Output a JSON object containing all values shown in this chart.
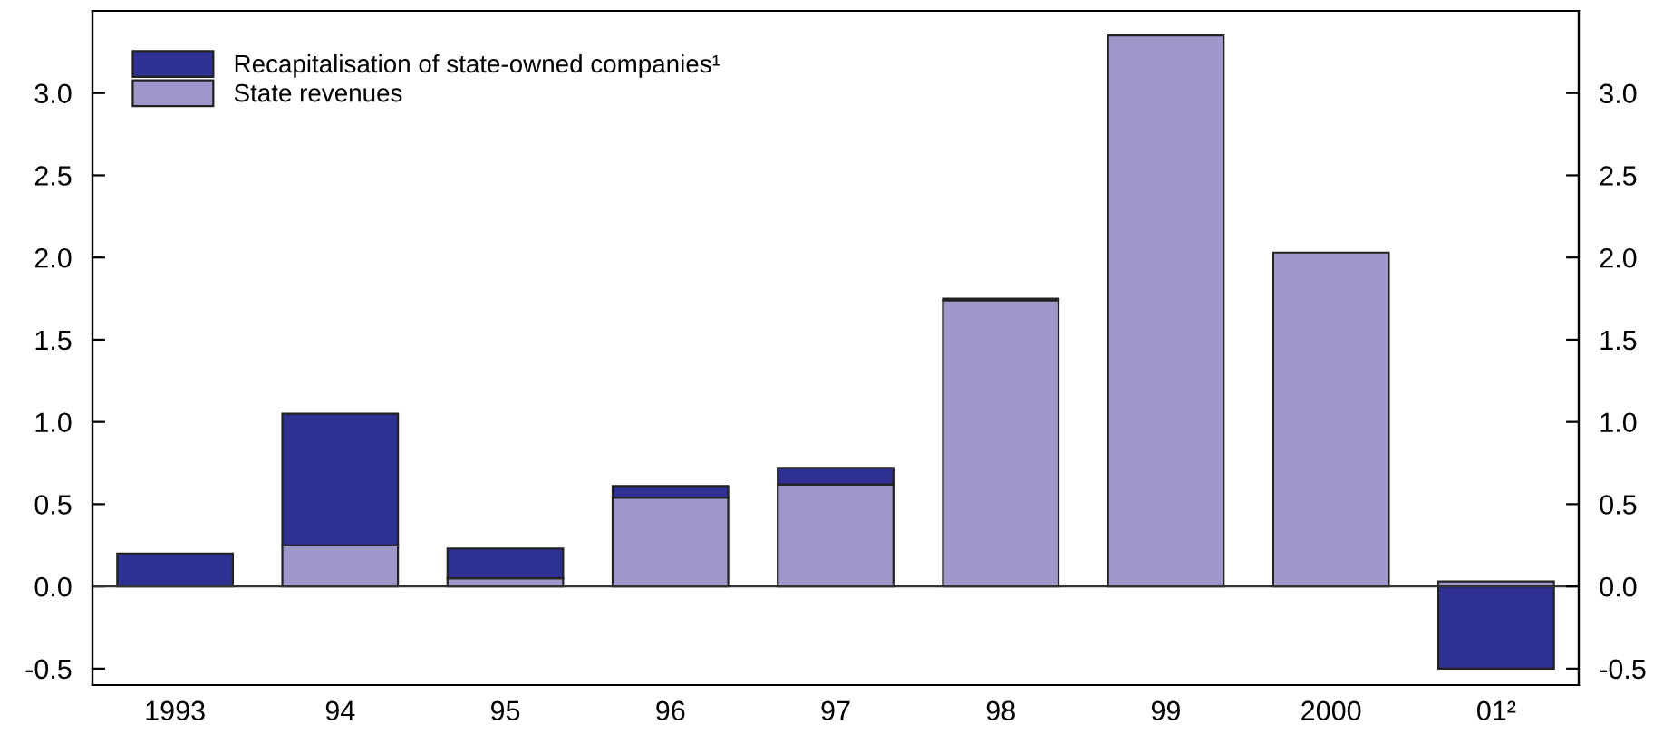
{
  "chart_data": {
    "type": "bar",
    "stacked": true,
    "categories": [
      "1993",
      "94",
      "95",
      "96",
      "97",
      "98",
      "99",
      "2000",
      "01²"
    ],
    "series": [
      {
        "name": "State revenues",
        "color": "#9e97c9",
        "values": [
          0,
          0.25,
          0.05,
          0.54,
          0.62,
          1.74,
          3.35,
          2.03,
          0.03
        ]
      },
      {
        "name": "Recapitalisation of state-owned companies¹",
        "color": "#2e3192",
        "values": [
          0.2,
          0.8,
          0.18,
          0.07,
          0.1,
          0.01,
          0,
          0,
          -0.5
        ]
      }
    ],
    "ylim": [
      -0.6,
      3.5
    ],
    "yticks": [
      {
        "value": -0.5,
        "label": "-0.5"
      },
      {
        "value": 0,
        "label": "0.0"
      },
      {
        "value": 0.5,
        "label": "0.5"
      },
      {
        "value": 1,
        "label": "1.0"
      },
      {
        "value": 1.5,
        "label": "1.5"
      },
      {
        "value": 2,
        "label": "2.0"
      },
      {
        "value": 2.5,
        "label": "2.5"
      },
      {
        "value": 3,
        "label": "3.0"
      }
    ],
    "y2lim": [
      -0.6,
      3.5
    ],
    "y2ticks": [
      {
        "value": -0.5,
        "label": "-0.5"
      },
      {
        "value": 0,
        "label": "0.0"
      },
      {
        "value": 0.5,
        "label": "0.5"
      },
      {
        "value": 1,
        "label": "1.0"
      },
      {
        "value": 1.5,
        "label": "1.5"
      },
      {
        "value": 2,
        "label": "2.0"
      },
      {
        "value": 2.5,
        "label": "2.5"
      },
      {
        "value": 3,
        "label": "3.0"
      }
    ],
    "ref_lines": [
      {
        "axis": "y",
        "value": 0,
        "color": "#333333"
      }
    ],
    "grid": false,
    "legend": "top left"
  }
}
